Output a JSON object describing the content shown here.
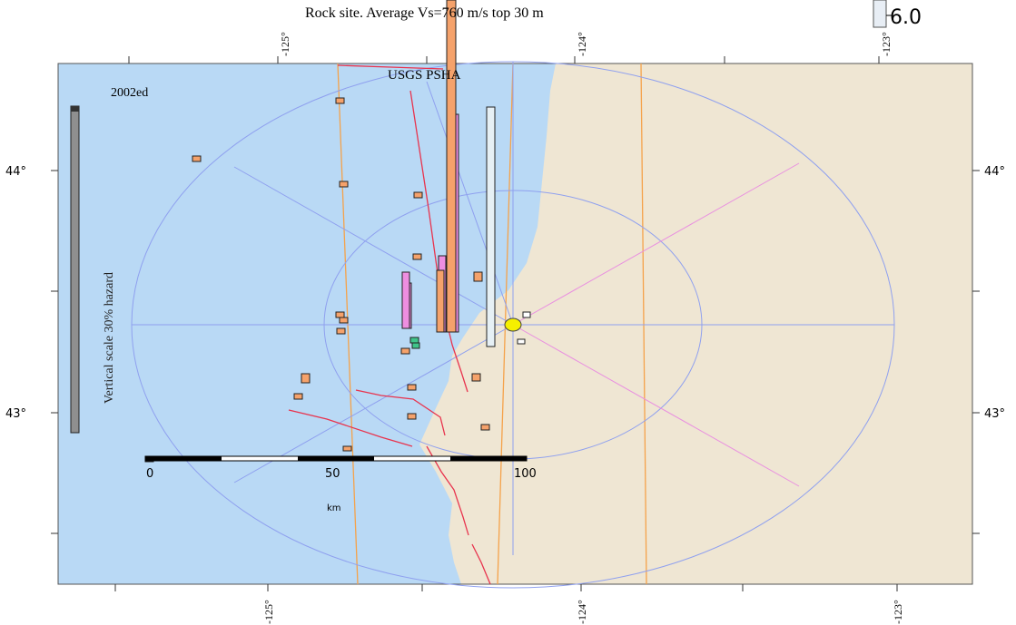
{
  "subtitle": "Rock site. Average Vs=760 m/s top 30 m",
  "map_title": "USGS PSHA",
  "edition": "2002ed",
  "vertical_scale_label": "Vertical scale 30% hazard",
  "legend": {
    "value": "6.0"
  },
  "lon_ticks_top": [
    "-125°",
    "-124°",
    "-123°"
  ],
  "lon_ticks_bottom": [
    "-125°",
    "-124°",
    "-123°"
  ],
  "lat_ticks_left": [
    "44°",
    "43°"
  ],
  "lat_ticks_right": [
    "44°",
    "43°"
  ],
  "scale_bar": {
    "labels": [
      "0",
      "50",
      "100"
    ],
    "unit": "km"
  },
  "colors": {
    "ocean": "#b9d9f5",
    "land": "#efe6d3",
    "fault": "#e8334d",
    "range_ring": "#8fa0ef",
    "radial_pink": "#e98fe0",
    "longitude_line": "#f5a24a",
    "bar_orange": "#f5a26b",
    "bar_pink": "#ee8ee0",
    "bar_white": "#e6f0f5",
    "bar_green": "#3fc48a",
    "site_marker": "#f5f000"
  },
  "icons": [
    "site-marker-icon"
  ]
}
